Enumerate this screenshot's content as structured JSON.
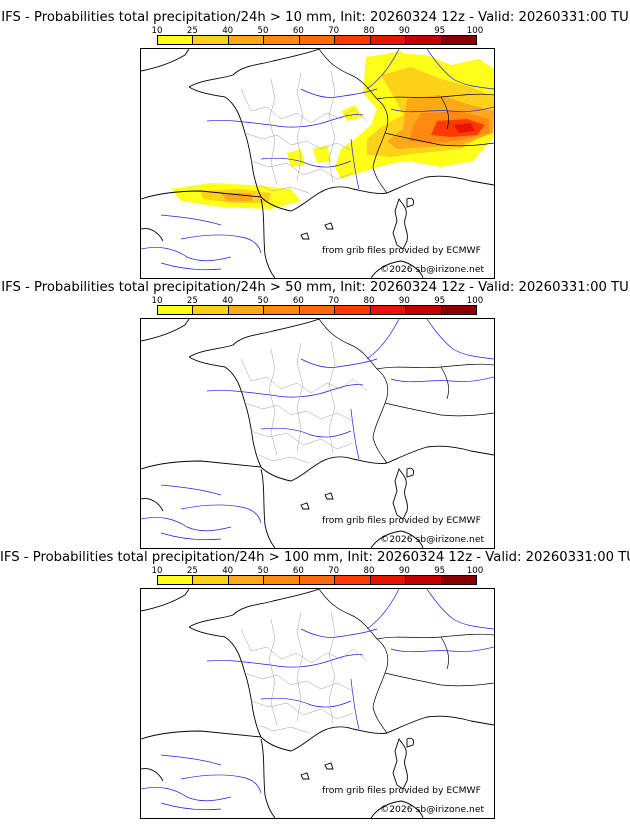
{
  "colorbar": {
    "ticks": [
      "10",
      "25",
      "40",
      "50",
      "60",
      "70",
      "80",
      "90",
      "95",
      "100"
    ],
    "colors": [
      "#ffff1a",
      "#ffd21a",
      "#ffa81a",
      "#ff8a12",
      "#ff6a0a",
      "#ff3a00",
      "#e81400",
      "#c40000",
      "#8a0000",
      "#520000"
    ]
  },
  "panels": [
    {
      "title": "IFS - Probabilities total precipitation/24h > 10 mm, Init: 20260324 12z - Valid: 20260331:00 TU",
      "has_rain": true
    },
    {
      "title": "IFS - Probabilities total precipitation/24h > 50 mm, Init: 20260324 12z - Valid: 20260331:00 TU",
      "has_rain": false
    },
    {
      "title": "IFS - Probabilities total precipitation/24h > 100 mm, Init: 20260324 12z - Valid: 20260331:00 TU",
      "has_rain": false
    }
  ],
  "credits": {
    "source": "from grib files provided by ECMWF",
    "copyright": "©2026 sb@irizone.net"
  },
  "colors": {
    "coast": "#000000",
    "rivers": "#1e1ee6",
    "departments": "#a0a0a0"
  }
}
